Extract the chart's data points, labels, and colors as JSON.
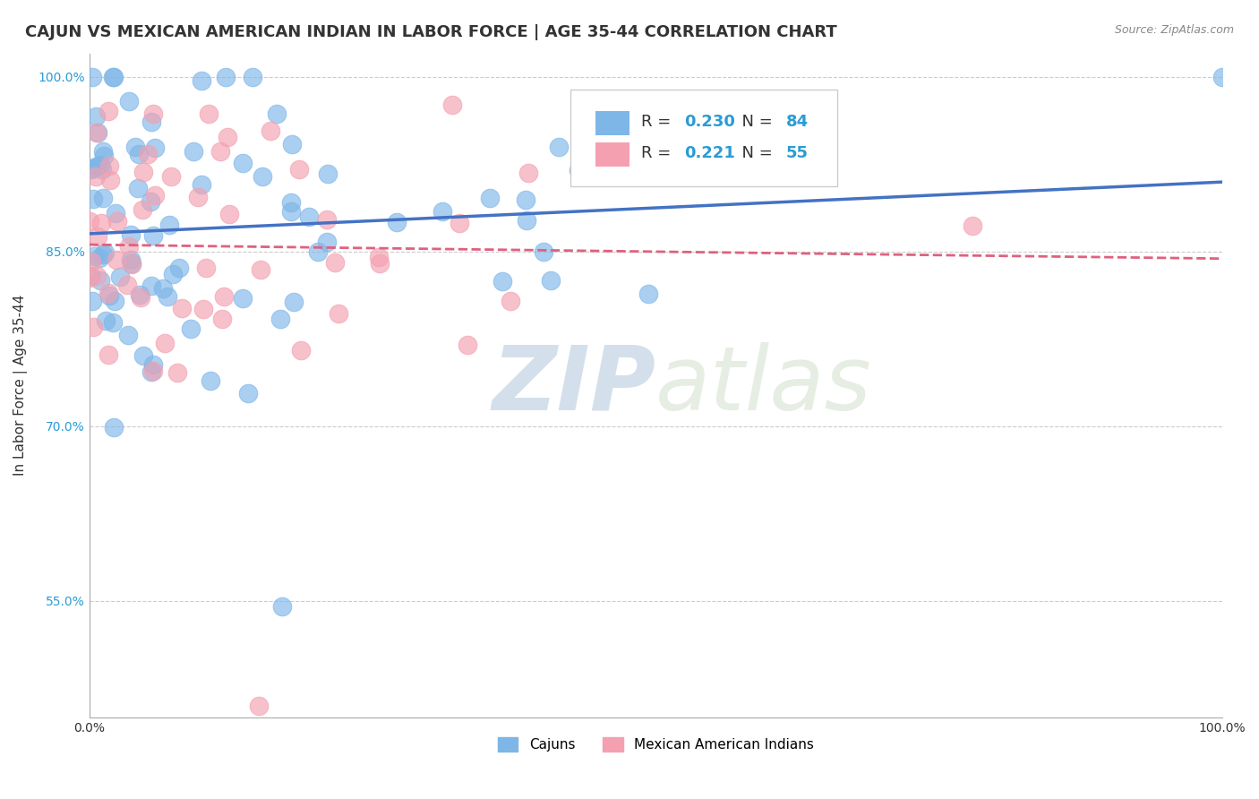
{
  "title": "CAJUN VS MEXICAN AMERICAN INDIAN IN LABOR FORCE | AGE 35-44 CORRELATION CHART",
  "source": "Source: ZipAtlas.com",
  "ylabel": "In Labor Force | Age 35-44",
  "xlim": [
    0,
    1
  ],
  "ylim": [
    0.45,
    1.02
  ],
  "x_tick_labels": [
    "0.0%",
    "100.0%"
  ],
  "y_tick_labels": [
    "55.0%",
    "70.0%",
    "85.0%",
    "100.0%"
  ],
  "y_tick_values": [
    0.55,
    0.7,
    0.85,
    1.0
  ],
  "cajun_color": "#7EB6E8",
  "mexican_color": "#F4A0B0",
  "cajun_line_color": "#4472C4",
  "mexican_line_color": "#E06080",
  "R_cajun": 0.23,
  "N_cajun": 84,
  "R_mexican": 0.221,
  "N_mexican": 55,
  "legend_label_cajun": "Cajuns",
  "legend_label_mexican": "Mexican American Indians",
  "watermark_zip": "ZIP",
  "watermark_atlas": "atlas",
  "background_color": "#FFFFFF",
  "grid_color": "#CCCCCC",
  "title_fontsize": 13,
  "axis_label_fontsize": 11,
  "tick_fontsize": 10
}
